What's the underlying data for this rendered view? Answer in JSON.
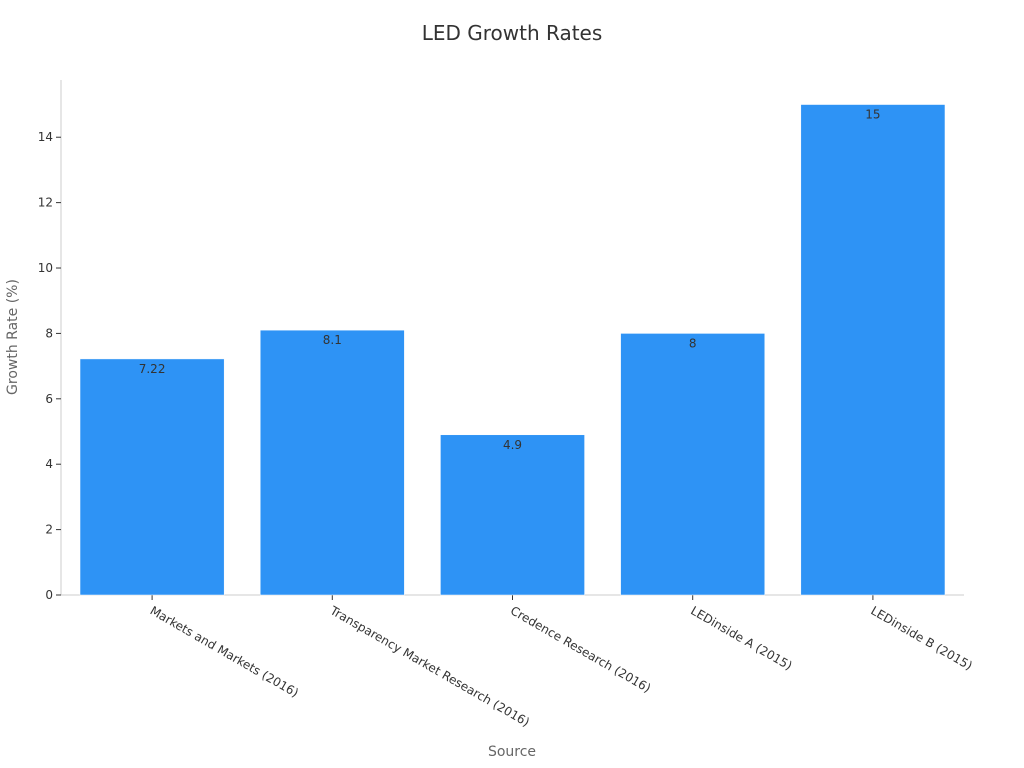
{
  "chart_data": {
    "type": "bar",
    "title": "LED Growth Rates",
    "xlabel": "Source",
    "ylabel": "Growth Rate (%)",
    "categories": [
      "Markets and Markets (2016)",
      "Transparency Market Research (2016)",
      "Credence Research (2016)",
      "LEDinside A (2015)",
      "LEDinside B (2015)"
    ],
    "values": [
      7.22,
      8.1,
      4.9,
      8,
      15
    ],
    "value_labels": [
      "7.22",
      "8.1",
      "4.9",
      "8",
      "15"
    ],
    "ylim": [
      0,
      15.75
    ],
    "yticks": [
      0,
      2,
      4,
      6,
      8,
      10,
      12,
      14
    ],
    "grid": false,
    "bar_color": "#2E93F5",
    "axis_color": "#CCCCCC"
  }
}
